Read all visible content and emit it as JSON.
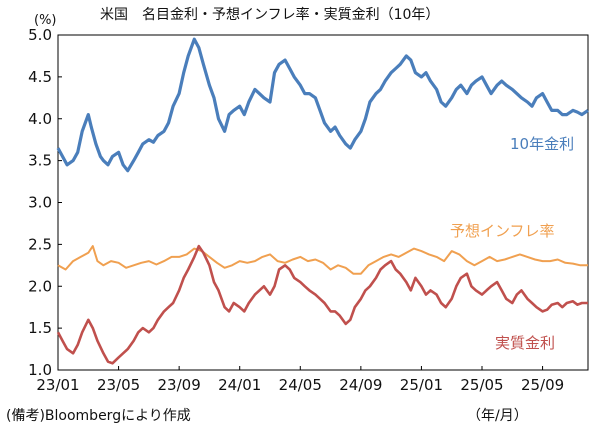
{
  "chart_data": {
    "type": "line",
    "title": "米国　名目金利・予想インフレ率・実質金利（10年）",
    "ylabel": "(%)",
    "xlabel": "（年/月）",
    "source": "(備考)Bloombergにより作成",
    "ylim": [
      1.0,
      5.0
    ],
    "yticks": [
      "5.0",
      "4.5",
      "4.0",
      "3.5",
      "3.0",
      "2.5",
      "2.0",
      "1.5",
      "1.0"
    ],
    "xlim": [
      0,
      35
    ],
    "xtick_labels": [
      "23/01",
      "23/05",
      "23/09",
      "24/01",
      "24/05",
      "24/09",
      "25/01",
      "25/05",
      "25/09"
    ],
    "xtick_positions": [
      0,
      4,
      8,
      12,
      16,
      20,
      24,
      28,
      32
    ],
    "grid": false,
    "series": [
      {
        "name": "10年金利",
        "color": "#4a7ebb",
        "x": [
          0,
          0.3,
          0.6,
          1.0,
          1.3,
          1.6,
          2.0,
          2.2,
          2.5,
          2.8,
          3.0,
          3.3,
          3.6,
          4.0,
          4.3,
          4.6,
          5.0,
          5.3,
          5.6,
          6.0,
          6.3,
          6.6,
          7.0,
          7.3,
          7.6,
          8.0,
          8.3,
          8.6,
          9.0,
          9.3,
          9.6,
          10.0,
          10.3,
          10.6,
          11.0,
          11.3,
          11.6,
          12.0,
          12.3,
          12.6,
          13.0,
          13.3,
          13.6,
          14.0,
          14.3,
          14.6,
          15.0,
          15.3,
          15.6,
          16.0,
          16.3,
          16.6,
          17.0,
          17.3,
          17.6,
          18.0,
          18.3,
          18.6,
          19.0,
          19.3,
          19.6,
          20.0,
          20.3,
          20.6,
          21.0,
          21.3,
          21.6,
          22.0,
          22.3,
          22.6,
          23.0,
          23.3,
          23.6,
          24.0,
          24.3,
          24.6,
          25.0,
          25.3,
          25.6,
          26.0,
          26.3,
          26.6,
          27.0,
          27.3,
          27.6,
          28.0,
          28.3,
          28.6,
          29.0,
          29.3,
          29.6,
          30.0,
          30.3,
          30.6,
          31.0,
          31.3,
          31.6,
          32.0,
          32.3,
          32.6,
          33.0,
          33.3,
          33.6,
          34.0,
          34.3,
          34.6,
          35.0
        ],
        "values": [
          3.65,
          3.55,
          3.45,
          3.5,
          3.6,
          3.85,
          4.05,
          3.9,
          3.7,
          3.55,
          3.5,
          3.45,
          3.55,
          3.6,
          3.45,
          3.38,
          3.5,
          3.6,
          3.7,
          3.75,
          3.72,
          3.8,
          3.85,
          3.95,
          4.15,
          4.3,
          4.55,
          4.75,
          4.95,
          4.85,
          4.65,
          4.4,
          4.25,
          4.0,
          3.85,
          4.05,
          4.1,
          4.15,
          4.05,
          4.2,
          4.35,
          4.3,
          4.25,
          4.2,
          4.55,
          4.65,
          4.7,
          4.6,
          4.5,
          4.4,
          4.3,
          4.3,
          4.25,
          4.1,
          3.95,
          3.85,
          3.9,
          3.8,
          3.7,
          3.65,
          3.75,
          3.85,
          4.0,
          4.2,
          4.3,
          4.35,
          4.45,
          4.55,
          4.6,
          4.65,
          4.75,
          4.7,
          4.55,
          4.5,
          4.55,
          4.45,
          4.35,
          4.2,
          4.15,
          4.25,
          4.35,
          4.4,
          4.3,
          4.4,
          4.45,
          4.5,
          4.4,
          4.3,
          4.4,
          4.45,
          4.4,
          4.35,
          4.3,
          4.25,
          4.2,
          4.15,
          4.25,
          4.3,
          4.2,
          4.1,
          4.1,
          4.05,
          4.05,
          4.1,
          4.08,
          4.05,
          4.1
        ]
      },
      {
        "name": "予想インフレ率",
        "color": "#f0a050",
        "x": [
          0,
          0.5,
          1.0,
          1.5,
          2.0,
          2.3,
          2.6,
          3.0,
          3.5,
          4.0,
          4.5,
          5.0,
          5.5,
          6.0,
          6.5,
          7.0,
          7.5,
          8.0,
          8.5,
          9.0,
          9.5,
          10.0,
          10.5,
          11.0,
          11.5,
          12.0,
          12.5,
          13.0,
          13.5,
          14.0,
          14.5,
          15.0,
          15.5,
          16.0,
          16.5,
          17.0,
          17.5,
          18.0,
          18.5,
          19.0,
          19.5,
          20.0,
          20.5,
          21.0,
          21.5,
          22.0,
          22.5,
          23.0,
          23.5,
          24.0,
          24.5,
          25.0,
          25.5,
          26.0,
          26.5,
          27.0,
          27.5,
          28.0,
          28.5,
          29.0,
          29.5,
          30.0,
          30.5,
          31.0,
          31.5,
          32.0,
          32.5,
          33.0,
          33.5,
          34.0,
          34.5,
          35.0
        ],
        "values": [
          2.25,
          2.2,
          2.3,
          2.35,
          2.4,
          2.48,
          2.3,
          2.25,
          2.3,
          2.28,
          2.22,
          2.25,
          2.28,
          2.3,
          2.26,
          2.3,
          2.35,
          2.35,
          2.38,
          2.45,
          2.42,
          2.35,
          2.28,
          2.22,
          2.25,
          2.3,
          2.28,
          2.3,
          2.35,
          2.38,
          2.3,
          2.28,
          2.32,
          2.35,
          2.3,
          2.32,
          2.28,
          2.2,
          2.25,
          2.22,
          2.15,
          2.15,
          2.25,
          2.3,
          2.35,
          2.38,
          2.35,
          2.4,
          2.45,
          2.42,
          2.38,
          2.35,
          2.3,
          2.42,
          2.38,
          2.3,
          2.25,
          2.3,
          2.35,
          2.3,
          2.32,
          2.35,
          2.38,
          2.35,
          2.32,
          2.3,
          2.3,
          2.32,
          2.28,
          2.27,
          2.25,
          2.25
        ]
      },
      {
        "name": "実質金利",
        "color": "#c0504d",
        "x": [
          0,
          0.3,
          0.6,
          1.0,
          1.3,
          1.6,
          2.0,
          2.3,
          2.6,
          3.0,
          3.3,
          3.6,
          4.0,
          4.3,
          4.6,
          5.0,
          5.3,
          5.6,
          6.0,
          6.3,
          6.6,
          7.0,
          7.3,
          7.6,
          8.0,
          8.3,
          8.6,
          9.0,
          9.3,
          9.6,
          10.0,
          10.3,
          10.6,
          11.0,
          11.3,
          11.6,
          12.0,
          12.3,
          12.6,
          13.0,
          13.3,
          13.6,
          14.0,
          14.3,
          14.6,
          15.0,
          15.3,
          15.6,
          16.0,
          16.3,
          16.6,
          17.0,
          17.3,
          17.6,
          18.0,
          18.3,
          18.6,
          19.0,
          19.3,
          19.6,
          20.0,
          20.3,
          20.6,
          21.0,
          21.3,
          21.6,
          22.0,
          22.3,
          22.6,
          23.0,
          23.3,
          23.6,
          24.0,
          24.3,
          24.6,
          25.0,
          25.3,
          25.6,
          26.0,
          26.3,
          26.6,
          27.0,
          27.3,
          27.6,
          28.0,
          28.3,
          28.6,
          29.0,
          29.3,
          29.6,
          30.0,
          30.3,
          30.6,
          31.0,
          31.3,
          31.6,
          32.0,
          32.3,
          32.6,
          33.0,
          33.3,
          33.6,
          34.0,
          34.3,
          34.6,
          35.0
        ],
        "values": [
          1.45,
          1.35,
          1.25,
          1.2,
          1.3,
          1.45,
          1.6,
          1.5,
          1.35,
          1.2,
          1.1,
          1.08,
          1.15,
          1.2,
          1.25,
          1.35,
          1.45,
          1.5,
          1.45,
          1.5,
          1.6,
          1.7,
          1.75,
          1.8,
          1.95,
          2.1,
          2.2,
          2.35,
          2.48,
          2.4,
          2.25,
          2.05,
          1.95,
          1.75,
          1.7,
          1.8,
          1.75,
          1.7,
          1.8,
          1.9,
          1.95,
          2.0,
          1.9,
          2.0,
          2.2,
          2.25,
          2.2,
          2.1,
          2.05,
          2.0,
          1.95,
          1.9,
          1.85,
          1.8,
          1.7,
          1.7,
          1.65,
          1.55,
          1.6,
          1.75,
          1.85,
          1.95,
          2.0,
          2.1,
          2.2,
          2.25,
          2.3,
          2.2,
          2.15,
          2.05,
          1.95,
          2.1,
          2.0,
          1.9,
          1.95,
          1.9,
          1.8,
          1.75,
          1.85,
          2.0,
          2.1,
          2.15,
          2.0,
          1.95,
          1.9,
          1.95,
          2.0,
          2.05,
          1.95,
          1.85,
          1.8,
          1.9,
          1.95,
          1.85,
          1.8,
          1.75,
          1.7,
          1.72,
          1.78,
          1.8,
          1.75,
          1.8,
          1.82,
          1.78,
          1.8,
          1.8
        ]
      }
    ]
  },
  "labels": {
    "nominal": "10年金利",
    "inflation": "予想インフレ率",
    "real": "実質金利"
  }
}
